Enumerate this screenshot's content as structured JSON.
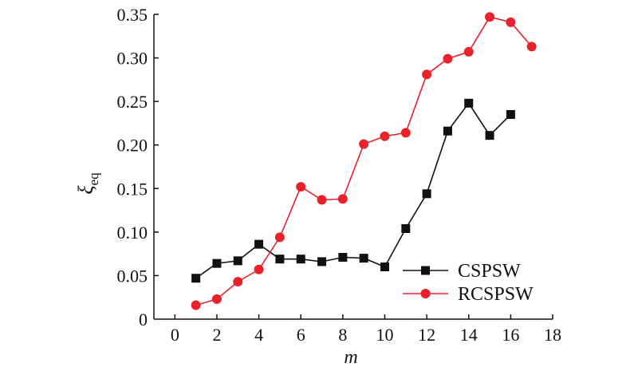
{
  "chart_data": {
    "type": "line",
    "xlabel": "m",
    "ylabel": "ξ",
    "ylabel_sub": "eq",
    "xlim": [
      -1,
      18
    ],
    "ylim": [
      0,
      0.35
    ],
    "xticks": [
      0,
      2,
      4,
      6,
      8,
      10,
      12,
      14,
      16,
      18
    ],
    "yticks": [
      0,
      0.05,
      0.1,
      0.15,
      0.2,
      0.25,
      0.3,
      0.35
    ],
    "ytick_labels": [
      "0",
      "0.05",
      "0.10",
      "0.15",
      "0.20",
      "0.25",
      "0.30",
      "0.35"
    ],
    "legend_position": "lower-right",
    "grid": false,
    "series": [
      {
        "name": "CSPSW",
        "color": "#111111",
        "marker": "square",
        "x": [
          1,
          2,
          3,
          4,
          5,
          6,
          7,
          8,
          9,
          10,
          11,
          12,
          13,
          14,
          15,
          16
        ],
        "y": [
          0.047,
          0.064,
          0.067,
          0.086,
          0.069,
          0.069,
          0.066,
          0.071,
          0.07,
          0.06,
          0.104,
          0.144,
          0.216,
          0.248,
          0.211,
          0.235
        ]
      },
      {
        "name": "RCSPSW",
        "color": "#e8212b",
        "marker": "circle",
        "x": [
          1,
          2,
          3,
          4,
          5,
          6,
          7,
          8,
          9,
          10,
          11,
          12,
          13,
          14,
          15,
          16,
          17
        ],
        "y": [
          0.016,
          0.023,
          0.043,
          0.057,
          0.094,
          0.152,
          0.137,
          0.138,
          0.201,
          0.21,
          0.214,
          0.281,
          0.299,
          0.307,
          0.347,
          0.341,
          0.313
        ]
      }
    ]
  }
}
